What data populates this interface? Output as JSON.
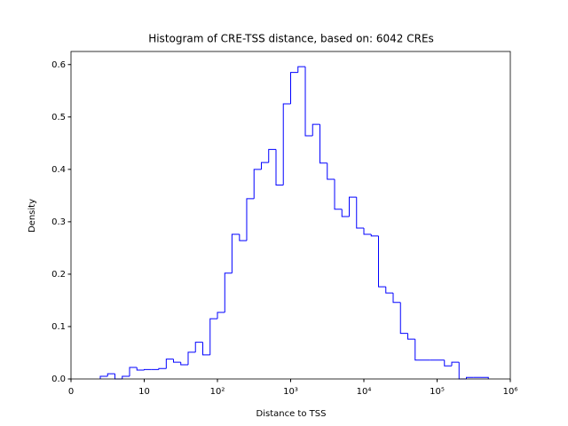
{
  "chart_data": {
    "type": "histogram",
    "title": "Histogram of CRE-TSS distance, based on: 6042 CREs",
    "xlabel": "Distance to TSS",
    "ylabel": "Density",
    "xscale": "symlog",
    "linthresh": 10,
    "color": "#0000ff",
    "bins": [
      4,
      5,
      6,
      7,
      8,
      9,
      10,
      12.6,
      15.8,
      20,
      25.1,
      31.6,
      39.8,
      50.1,
      63.1,
      79.4,
      100,
      126,
      158,
      200,
      251,
      316,
      398,
      501,
      631,
      794,
      1000,
      1259,
      1585,
      1995,
      2512,
      3162,
      3981,
      5012,
      6310,
      7943,
      10000,
      12589,
      15849,
      19953,
      25119,
      31623,
      39811,
      50119,
      63096,
      79433,
      100000,
      125893,
      158489,
      199526,
      251189,
      316228,
      398107,
      501187
    ],
    "counts": [
      0.005,
      0.01,
      0,
      0.005,
      0.022,
      0.017,
      0.018,
      0.018,
      0.02,
      0.038,
      0.032,
      0.027,
      0.051,
      0.07,
      0.046,
      0.115,
      0.127,
      0.202,
      0.276,
      0.264,
      0.344,
      0.4,
      0.413,
      0.438,
      0.37,
      0.525,
      0.585,
      0.596,
      0.464,
      0.486,
      0.412,
      0.381,
      0.324,
      0.31,
      0.347,
      0.288,
      0.276,
      0.273,
      0.176,
      0.164,
      0.146,
      0.087,
      0.076,
      0.036,
      0.036,
      0.036,
      0.036,
      0.025,
      0.032,
      0,
      0.003,
      0.003,
      0.003
    ],
    "xlim": [
      0,
      1000000
    ],
    "xticks": [
      0,
      10,
      {
        "value": 100,
        "label": "10²"
      },
      {
        "value": 1000,
        "label": "10³"
      },
      {
        "value": 10000,
        "label": "10⁴"
      },
      {
        "value": 100000,
        "label": "10⁵"
      },
      {
        "value": 1000000,
        "label": "10⁶"
      }
    ],
    "ylim": [
      0,
      0.625
    ],
    "yticks": [
      {
        "value": 0,
        "label": "0.0"
      },
      0.1,
      0.2,
      0.3,
      0.4,
      0.5,
      0.6
    ]
  }
}
